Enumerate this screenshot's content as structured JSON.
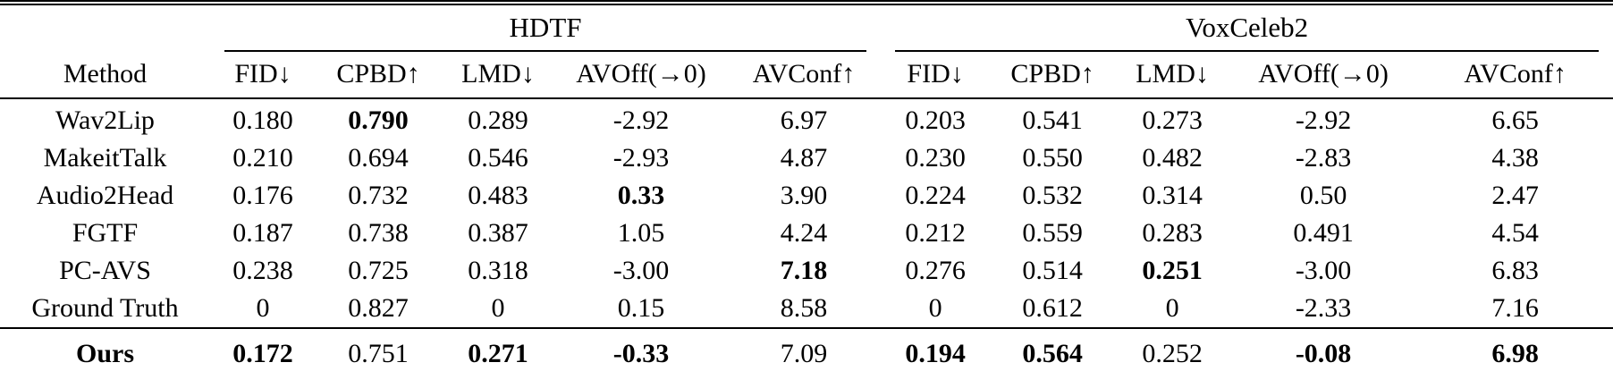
{
  "table": {
    "method_header": "Method",
    "groups": [
      {
        "label": "HDTF"
      },
      {
        "label": "VoxCeleb2"
      }
    ],
    "metric_headers": [
      "FID↓",
      "CPBD↑",
      "LMD↓",
      "AVOff(→0)",
      "AVConf↑"
    ],
    "rows": [
      {
        "method": "Wav2Lip",
        "bold_method": false,
        "is_ours": false,
        "values": [
          "0.180",
          "0.790",
          "0.289",
          "-2.92",
          "6.97",
          "0.203",
          "0.541",
          "0.273",
          "-2.92",
          "6.65"
        ],
        "bold": [
          false,
          true,
          false,
          false,
          false,
          false,
          false,
          false,
          false,
          false
        ]
      },
      {
        "method": "MakeitTalk",
        "bold_method": false,
        "is_ours": false,
        "values": [
          "0.210",
          "0.694",
          "0.546",
          "-2.93",
          "4.87",
          "0.230",
          "0.550",
          "0.482",
          "-2.83",
          "4.38"
        ],
        "bold": [
          false,
          false,
          false,
          false,
          false,
          false,
          false,
          false,
          false,
          false
        ]
      },
      {
        "method": "Audio2Head",
        "bold_method": false,
        "is_ours": false,
        "values": [
          "0.176",
          "0.732",
          "0.483",
          "0.33",
          "3.90",
          "0.224",
          "0.532",
          "0.314",
          "0.50",
          "2.47"
        ],
        "bold": [
          false,
          false,
          false,
          true,
          false,
          false,
          false,
          false,
          false,
          false
        ]
      },
      {
        "method": "FGTF",
        "bold_method": false,
        "is_ours": false,
        "values": [
          "0.187",
          "0.738",
          "0.387",
          "1.05",
          "4.24",
          "0.212",
          "0.559",
          "0.283",
          "0.491",
          "4.54"
        ],
        "bold": [
          false,
          false,
          false,
          false,
          false,
          false,
          false,
          false,
          false,
          false
        ]
      },
      {
        "method": "PC-AVS",
        "bold_method": false,
        "is_ours": false,
        "values": [
          "0.238",
          "0.725",
          "0.318",
          "-3.00",
          "7.18",
          "0.276",
          "0.514",
          "0.251",
          "-3.00",
          "6.83"
        ],
        "bold": [
          false,
          false,
          false,
          false,
          true,
          false,
          false,
          true,
          false,
          false
        ]
      },
      {
        "method": "Ground Truth",
        "bold_method": false,
        "is_ours": false,
        "values": [
          "0",
          "0.827",
          "0",
          "0.15",
          "8.58",
          "0",
          "0.612",
          "0",
          "-2.33",
          "7.16"
        ],
        "bold": [
          false,
          false,
          false,
          false,
          false,
          false,
          false,
          false,
          false,
          false
        ]
      },
      {
        "method": "Ours",
        "bold_method": true,
        "is_ours": true,
        "values": [
          "0.172",
          "0.751",
          "0.271",
          "-0.33",
          "7.09",
          "0.194",
          "0.564",
          "0.252",
          "-0.08",
          "6.98"
        ],
        "bold": [
          true,
          false,
          true,
          true,
          false,
          true,
          true,
          false,
          true,
          true
        ]
      }
    ]
  }
}
